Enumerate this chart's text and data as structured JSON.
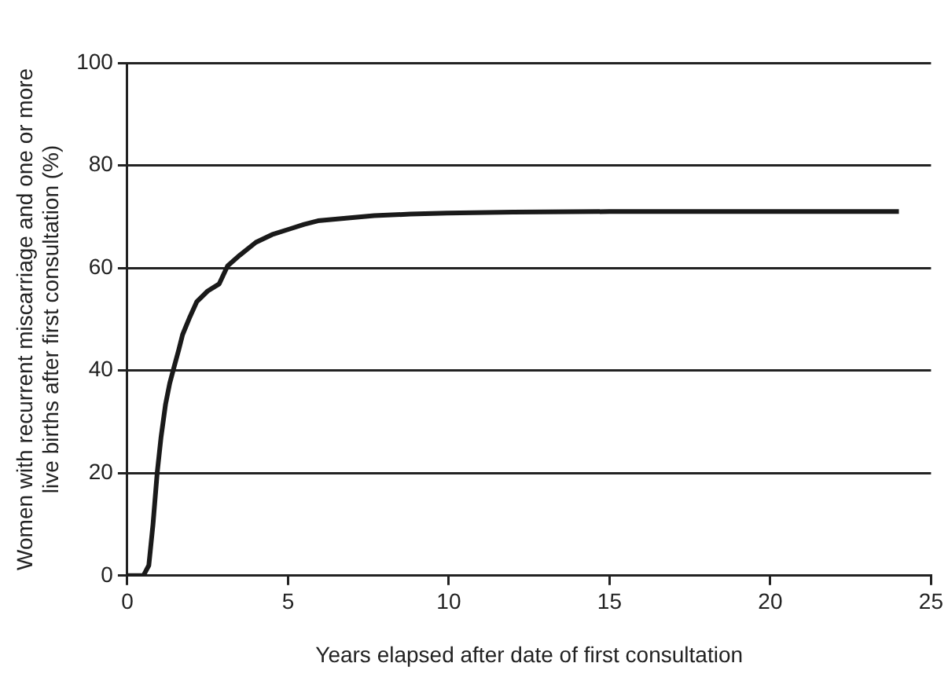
{
  "chart_data": {
    "type": "line",
    "xlabel": "Years elapsed after date of first consultation",
    "ylabel": "Women with recurrent miscarriage and one or more live births after first consultation (%)",
    "x": [
      0,
      0.5,
      0.67,
      0.8,
      0.93,
      1.05,
      1.19,
      1.32,
      1.46,
      1.6,
      1.72,
      1.95,
      2.16,
      2.5,
      2.86,
      3.12,
      3.5,
      4.0,
      4.5,
      5.05,
      5.5,
      5.93,
      6.8,
      7.68,
      8.8,
      9.95,
      12,
      15,
      18,
      21,
      24
    ],
    "series": [
      {
        "color": "#1a1a1a",
        "values": [
          0,
          0,
          2,
          10,
          20,
          27,
          33.4,
          37.5,
          40.8,
          44,
          47,
          50.5,
          53.4,
          55.5,
          56.9,
          60.4,
          62.5,
          65,
          66.5,
          67.6,
          68.5,
          69.2,
          69.7,
          70.2,
          70.5,
          70.7,
          70.9,
          71,
          71,
          71,
          71
        ]
      }
    ],
    "xlim": [
      0,
      25
    ],
    "xticks": [
      0,
      5,
      10,
      15,
      20,
      25
    ],
    "ylim": [
      0,
      100
    ],
    "yticks": [
      0,
      20,
      40,
      60,
      80,
      100
    ],
    "grid": "y",
    "legend": false,
    "marker": "none",
    "line_style": "solid"
  }
}
